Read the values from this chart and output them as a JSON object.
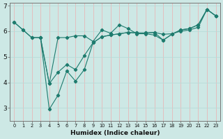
{
  "title": "",
  "xlabel": "Humidex (Indice chaleur)",
  "ylabel": "",
  "bg_color": "#cde8e5",
  "line_color": "#1e7b6e",
  "grid_color_v": "#e8b8b8",
  "grid_color_h": "#b8dbd8",
  "axis_color": "#777777",
  "xlim": [
    -0.5,
    23.5
  ],
  "ylim": [
    2.5,
    7.1
  ],
  "yticks": [
    3,
    4,
    5,
    6,
    7
  ],
  "xticks": [
    0,
    1,
    2,
    3,
    4,
    5,
    6,
    7,
    8,
    9,
    10,
    11,
    12,
    13,
    14,
    15,
    16,
    17,
    18,
    19,
    20,
    21,
    22,
    23
  ],
  "series1": [
    [
      0,
      6.35
    ],
    [
      1,
      6.05
    ],
    [
      2,
      5.75
    ],
    [
      3,
      5.75
    ],
    [
      4,
      3.95
    ],
    [
      5,
      5.75
    ],
    [
      6,
      5.75
    ],
    [
      7,
      5.82
    ],
    [
      8,
      5.82
    ],
    [
      9,
      5.6
    ],
    [
      10,
      6.05
    ],
    [
      11,
      5.92
    ],
    [
      12,
      6.25
    ],
    [
      13,
      6.1
    ],
    [
      14,
      5.9
    ],
    [
      15,
      5.9
    ],
    [
      16,
      5.85
    ],
    [
      17,
      5.65
    ],
    [
      18,
      5.88
    ],
    [
      19,
      6.05
    ],
    [
      20,
      6.1
    ],
    [
      21,
      6.25
    ],
    [
      22,
      6.85
    ],
    [
      23,
      6.6
    ]
  ],
  "series2": [
    [
      0,
      6.35
    ],
    [
      1,
      6.05
    ],
    [
      2,
      5.75
    ],
    [
      3,
      5.75
    ],
    [
      4,
      3.95
    ],
    [
      5,
      4.4
    ],
    [
      6,
      4.7
    ],
    [
      7,
      4.5
    ],
    [
      8,
      5.05
    ],
    [
      9,
      5.55
    ],
    [
      10,
      5.78
    ],
    [
      11,
      5.85
    ],
    [
      12,
      5.9
    ],
    [
      13,
      5.95
    ],
    [
      14,
      5.93
    ],
    [
      15,
      5.93
    ],
    [
      16,
      5.95
    ],
    [
      17,
      5.88
    ],
    [
      18,
      5.9
    ],
    [
      19,
      6.0
    ],
    [
      20,
      6.05
    ],
    [
      21,
      6.15
    ],
    [
      22,
      6.85
    ],
    [
      23,
      6.6
    ]
  ],
  "series3": [
    [
      3,
      5.75
    ],
    [
      4,
      2.95
    ],
    [
      5,
      3.5
    ],
    [
      6,
      4.45
    ],
    [
      7,
      4.05
    ],
    [
      8,
      4.5
    ],
    [
      9,
      5.55
    ],
    [
      10,
      5.78
    ],
    [
      11,
      5.85
    ],
    [
      12,
      5.9
    ],
    [
      13,
      5.95
    ],
    [
      14,
      5.93
    ],
    [
      15,
      5.93
    ],
    [
      16,
      5.95
    ],
    [
      17,
      5.65
    ],
    [
      18,
      5.88
    ],
    [
      19,
      6.05
    ],
    [
      20,
      6.1
    ],
    [
      21,
      6.25
    ],
    [
      22,
      6.85
    ],
    [
      23,
      6.6
    ]
  ]
}
